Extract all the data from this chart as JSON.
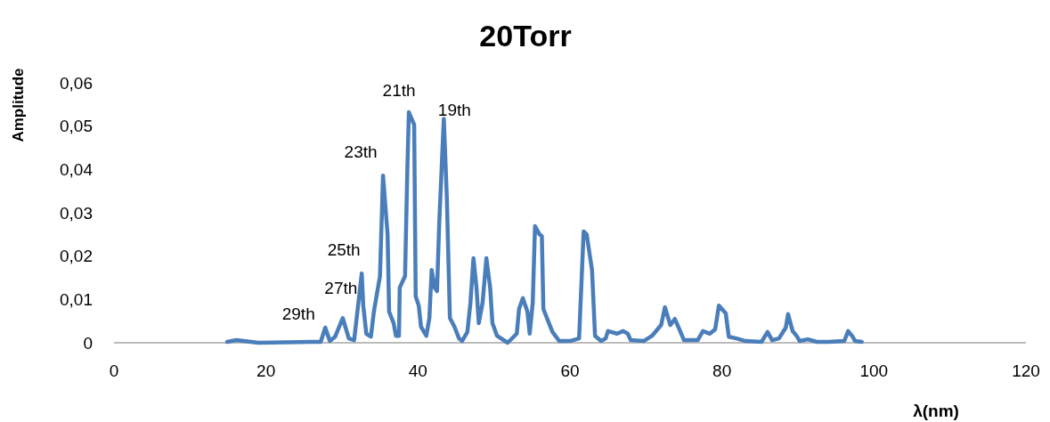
{
  "chart_data": {
    "type": "line",
    "title": "20Torr",
    "xlabel": "λ(nm)",
    "ylabel": "Amplitude",
    "xlim": [
      0,
      120
    ],
    "xticks": [
      0,
      20,
      40,
      60,
      80,
      100,
      120
    ],
    "ylim": [
      0,
      0.06
    ],
    "yticks": [
      {
        "value": 0,
        "label": "0"
      },
      {
        "value": 0.01,
        "label": "0,01"
      },
      {
        "value": 0.02,
        "label": "0,02"
      },
      {
        "value": 0.03,
        "label": "0,03"
      },
      {
        "value": 0.04,
        "label": "0,04"
      },
      {
        "value": 0.05,
        "label": "0,05"
      },
      {
        "value": 0.06,
        "label": "0,06"
      }
    ],
    "grid": false,
    "marker": "none",
    "line_style": "solid",
    "series": [
      {
        "color": "#4a7ebb",
        "x": [
          14.9,
          16.1,
          19.0,
          26.0,
          27.2,
          27.8,
          28.4,
          29.1,
          30.1,
          30.9,
          31.6,
          32.6,
          32.8,
          33.2,
          33.8,
          34.2,
          35.0,
          35.4,
          36.0,
          36.2,
          36.8,
          37.1,
          37.5,
          37.6,
          38.3,
          38.6,
          38.8,
          39.5,
          39.7,
          40.1,
          40.4,
          41.1,
          41.5,
          41.8,
          42.2,
          42.5,
          42.8,
          43.4,
          43.8,
          44.2,
          44.8,
          45.4,
          45.8,
          46.5,
          46.9,
          47.3,
          47.7,
          48.0,
          48.5,
          49.0,
          49.5,
          49.8,
          50.4,
          51.8,
          53.0,
          53.3,
          53.8,
          54.4,
          54.7,
          55.1,
          55.4,
          56.0,
          56.3,
          56.5,
          57.1,
          57.7,
          58.6,
          60.0,
          61.2,
          61.8,
          62.2,
          62.9,
          63.3,
          64.1,
          64.7,
          65.0,
          66.2,
          67.0,
          67.6,
          68.0,
          69.7,
          70.8,
          72.0,
          72.5,
          73.2,
          73.8,
          74.4,
          75.0,
          76.8,
          77.5,
          78.4,
          79.1,
          79.6,
          80.5,
          80.9,
          81.9,
          83.1,
          85.2,
          86.0,
          86.6,
          87.5,
          88.4,
          88.7,
          89.3,
          89.9,
          90.2,
          91.3,
          92.5,
          94.0,
          96.1,
          96.6,
          97.2,
          97.5,
          98.4
        ],
        "values": [
          0.0002,
          0.0006,
          0,
          0.0002,
          0.0002,
          0.0035,
          0.0004,
          0.0014,
          0.0057,
          0.001,
          0.0006,
          0.016,
          0.0086,
          0.0021,
          0.0014,
          0.0072,
          0.0154,
          0.0386,
          0.025,
          0.0072,
          0.0045,
          0.0016,
          0.0016,
          0.0127,
          0.0154,
          0.04,
          0.0532,
          0.0503,
          0.0107,
          0.0086,
          0.0037,
          0.0016,
          0.0057,
          0.0168,
          0.0127,
          0.0119,
          0.0277,
          0.0517,
          0.0333,
          0.0057,
          0.0037,
          0.001,
          0.0004,
          0.0025,
          0.0092,
          0.0195,
          0.0127,
          0.0045,
          0.0092,
          0.0195,
          0.0127,
          0.0045,
          0.0016,
          0,
          0.0021,
          0.0078,
          0.0103,
          0.0072,
          0.0021,
          0.0092,
          0.0269,
          0.025,
          0.0246,
          0.0078,
          0.0051,
          0.0025,
          0.0004,
          0.0004,
          0.001,
          0.0257,
          0.025,
          0.0168,
          0.0016,
          0.0004,
          0.001,
          0.0027,
          0.0021,
          0.0027,
          0.0021,
          0.0006,
          0.0004,
          0.0016,
          0.0041,
          0.0082,
          0.0041,
          0.0055,
          0.0031,
          0.0006,
          0.0006,
          0.0027,
          0.0021,
          0.0031,
          0.0086,
          0.0068,
          0.0014,
          0.001,
          0.0004,
          0.0002,
          0.0025,
          0.0006,
          0.001,
          0.0035,
          0.0066,
          0.0027,
          0.0014,
          0.0004,
          0.0008,
          0.0002,
          0.0002,
          0.0004,
          0.0027,
          0.0014,
          0.0004,
          0.0002
        ]
      }
    ],
    "annotations": [
      {
        "text": "29th",
        "x": 27.8,
        "y": 0.0035
      },
      {
        "text": "27th",
        "x": 30.1,
        "y": 0.0057
      },
      {
        "text": "25th",
        "x": 32.6,
        "y": 0.016
      },
      {
        "text": "23th",
        "x": 35.4,
        "y": 0.0386
      },
      {
        "text": "21th",
        "x": 38.8,
        "y": 0.0532
      },
      {
        "text": "19th",
        "x": 43.4,
        "y": 0.0517
      }
    ]
  }
}
